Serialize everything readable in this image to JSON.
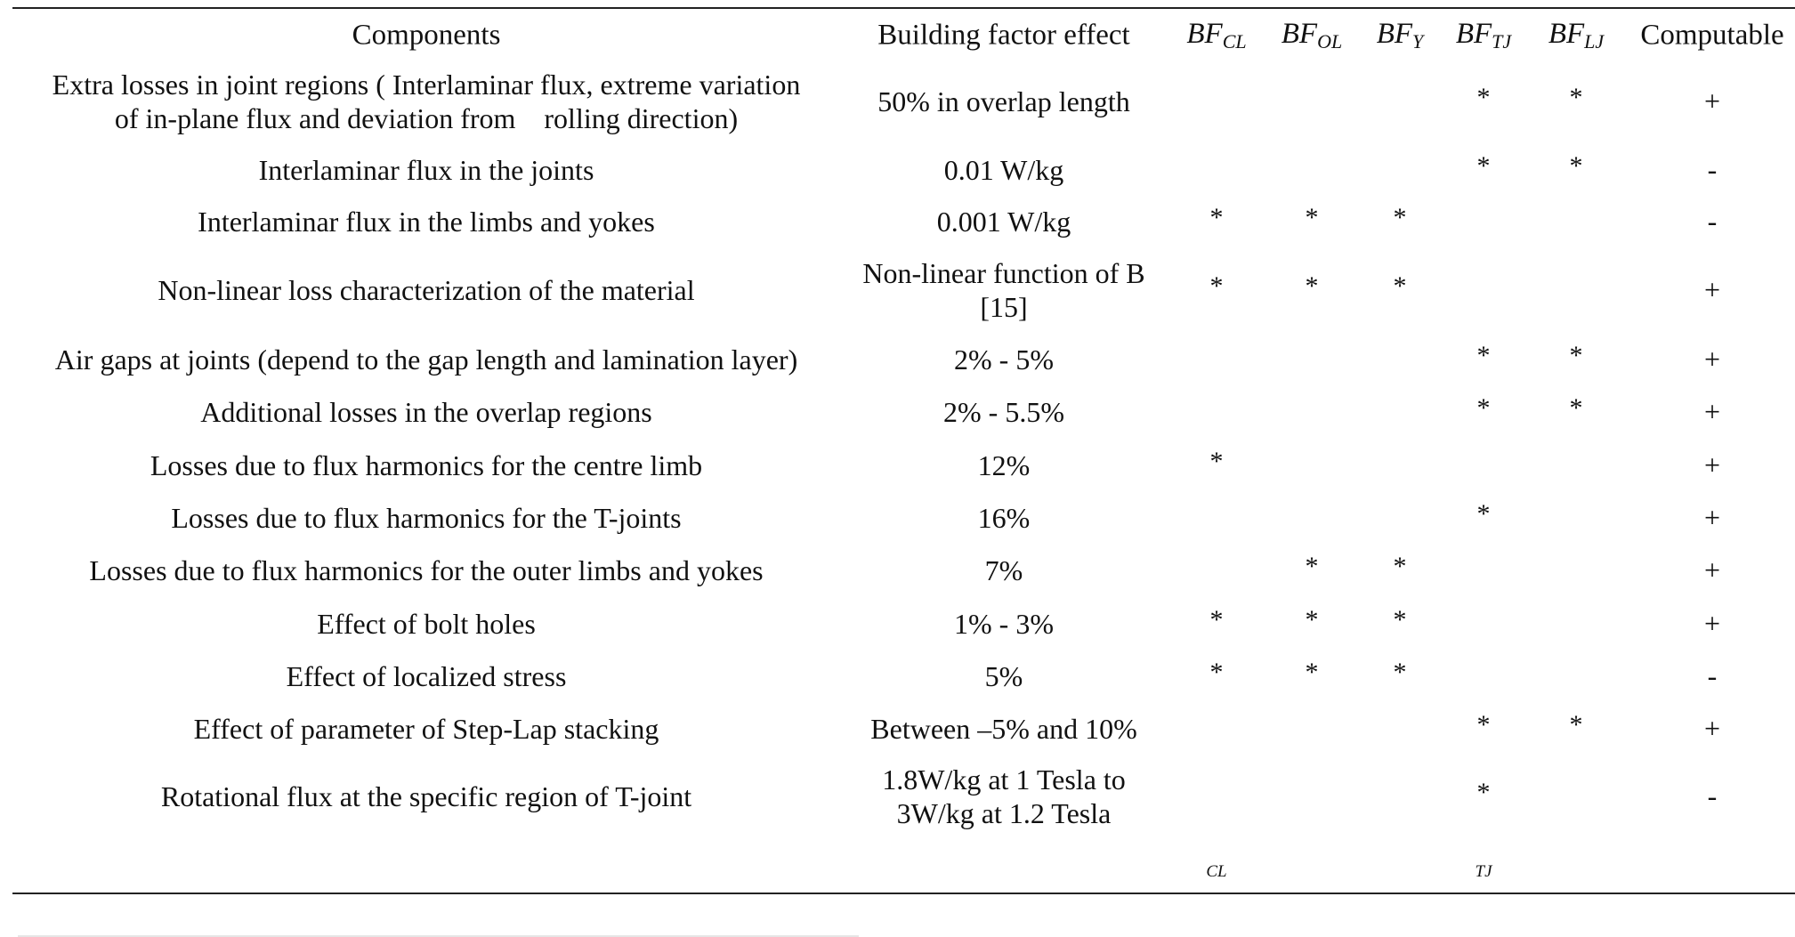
{
  "headers": {
    "components": "Components",
    "building_factor_effect": "Building factor effect",
    "bf_cl": {
      "base": "BF",
      "sub": "CL"
    },
    "bf_ol": {
      "base": "BF",
      "sub": "OL"
    },
    "bf_y": {
      "base": "BF",
      "sub": "Y"
    },
    "bf_tj": {
      "base": "BF",
      "sub": "TJ"
    },
    "bf_lj": {
      "base": "BF",
      "sub": "LJ"
    },
    "computable": "Computable"
  },
  "rows": [
    {
      "component": [
        "Extra losses in joint regions ( Interlaminar flux, extreme variation",
        "of in-plane flux and deviation from    rolling direction)"
      ],
      "effect": [
        "50% in overlap length"
      ],
      "cl": "",
      "ol": "",
      "y": "",
      "tj": "*",
      "lj": "*",
      "computable": "+"
    },
    {
      "component": [
        "Interlaminar flux in the joints"
      ],
      "effect": [
        "0.01 W/kg"
      ],
      "cl": "",
      "ol": "",
      "y": "",
      "tj": "*",
      "lj": "*",
      "computable": "-"
    },
    {
      "component": [
        "Interlaminar flux in the limbs and yokes"
      ],
      "effect": [
        "0.001 W/kg"
      ],
      "cl": "*",
      "ol": "*",
      "y": "*",
      "tj": "",
      "lj": "",
      "computable": "-"
    },
    {
      "component": [
        "Non-linear loss characterization of the material"
      ],
      "effect": [
        "Non-linear function of B",
        "[15]"
      ],
      "cl": "*",
      "ol": "*",
      "y": "*",
      "tj": "",
      "lj": "",
      "computable": "+"
    },
    {
      "component": [
        "Air gaps at joints (depend to the gap length and lamination layer)"
      ],
      "effect": [
        "2% - 5%"
      ],
      "cl": "",
      "ol": "",
      "y": "",
      "tj": "*",
      "lj": "*",
      "computable": "+"
    },
    {
      "component": [
        "Additional losses in the overlap regions"
      ],
      "effect": [
        "2% - 5.5%"
      ],
      "cl": "",
      "ol": "",
      "y": "",
      "tj": "*",
      "lj": "*",
      "computable": "+"
    },
    {
      "component": [
        "Losses due to flux harmonics for the centre limb"
      ],
      "effect": [
        "12%"
      ],
      "cl": "*",
      "ol": "",
      "y": "",
      "tj": "",
      "lj": "",
      "computable": "+"
    },
    {
      "component": [
        "Losses due to flux harmonics for the T-joints"
      ],
      "effect": [
        "16%"
      ],
      "cl": "",
      "ol": "",
      "y": "",
      "tj": "*",
      "lj": "",
      "computable": "+"
    },
    {
      "component": [
        "Losses due to flux harmonics for the outer limbs and yokes"
      ],
      "effect": [
        "7%"
      ],
      "cl": "",
      "ol": "*",
      "y": "*",
      "tj": "",
      "lj": "",
      "computable": "+"
    },
    {
      "component": [
        "Effect of bolt holes"
      ],
      "effect": [
        "1% - 3%"
      ],
      "cl": "*",
      "ol": "*",
      "y": "*",
      "tj": "",
      "lj": "",
      "computable": "+"
    },
    {
      "component": [
        "Effect of localized stress"
      ],
      "effect": [
        "5%"
      ],
      "cl": "*",
      "ol": "*",
      "y": "*",
      "tj": "",
      "lj": "",
      "computable": "-"
    },
    {
      "component": [
        "Effect of parameter of Step-Lap stacking"
      ],
      "effect": [
        "Between –5% and 10%"
      ],
      "cl": "",
      "ol": "",
      "y": "",
      "tj": "*",
      "lj": "*",
      "computable": "+"
    },
    {
      "component": [
        "Rotational flux at the specific region of T-joint"
      ],
      "effect": [
        "1.8W/kg at 1 Tesla to",
        "3W/kg at 1.2 Tesla"
      ],
      "cl": "",
      "ol": "",
      "y": "",
      "tj": "*",
      "lj": "",
      "computable": "-"
    }
  ],
  "footer": {
    "cl": "CL",
    "tj": "TJ"
  }
}
